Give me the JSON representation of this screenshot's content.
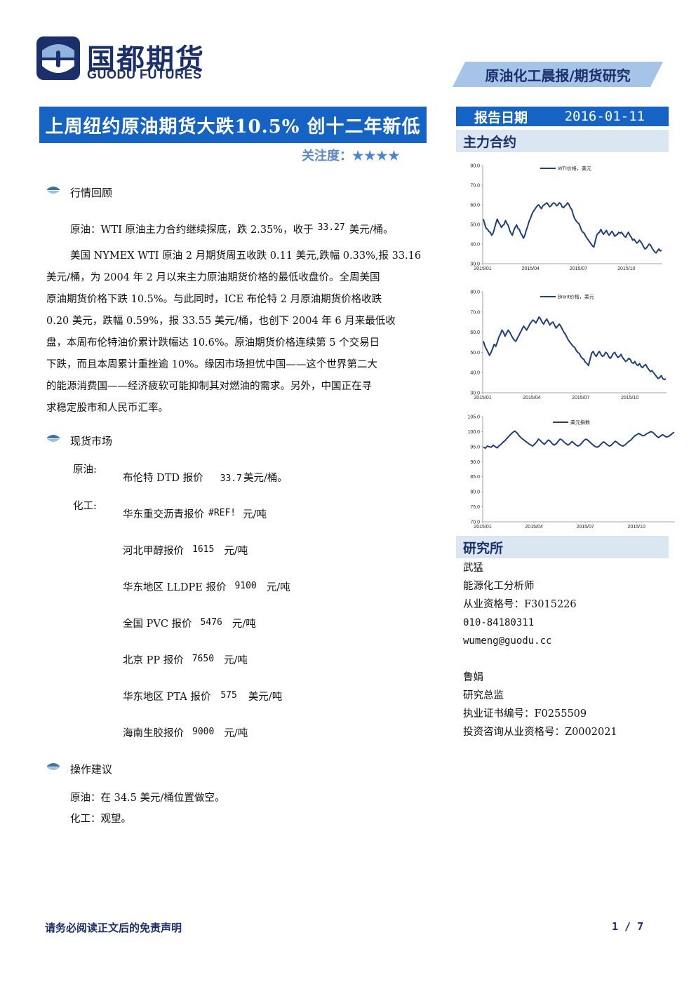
{
  "header": {
    "logo_cn": "国都期货",
    "logo_en": "GUODU FUTURES",
    "report_type": "原油化工晨报/期货研究",
    "title": "上周纽约原油期货大跌10.5% 创十二年新低",
    "attention_label": "关注度：",
    "attention_stars": "★★★★"
  },
  "sidebar": {
    "date_label": "报告日期",
    "date_value": "2016-01-11",
    "main_contract_label": "主力合约",
    "institute_label": "研究所"
  },
  "sections": {
    "review": {
      "title": "行情回顾",
      "lead_prefix": "原油：WTI 原油主力合约继续探底，跌 2.35%，收于",
      "lead_value": "33.27",
      "lead_unit": "美元/桶。",
      "lines": [
        "美国 NYMEX WTI 原油 2 月期货周五收跌 0.11 美元,跌幅 0.33%,报 33.16",
        "美元/桶，为 2004 年 2 月以来主力原油期货价格的最低收盘价。全周美国",
        "原油期货价格下跌 10.5%。与此同时，ICE 布伦特 2 月原油期货价格收跌",
        "0.20 美元，跌幅 0.59%，报 33.55 美元/桶，也创下 2004 年 6 月来最低收",
        "盘，本周布伦特油价累计跌幅达 10.6%。原油期货价格连续第 5 个交易日",
        "下跌，而且本周累计重挫逾 10%。缘因市场担忧中国——这个世界第二大",
        "的能源消费国——经济疲软可能抑制其对燃油的需求。另外，中国正在寻",
        "求稳定股市和人民币汇率。"
      ]
    },
    "spot": {
      "title": "现货市场",
      "crude_label": "原油:",
      "chem_label": "化工:",
      "items": [
        {
          "name": "布伦特 DTD 报价",
          "value": "33.7",
          "unit": "美元/桶。"
        },
        {
          "name": "华东重交沥青报价",
          "value": "#REF!",
          "unit": "元/吨"
        },
        {
          "name": "河北甲醇报价",
          "value": "1615",
          "unit": "元/吨"
        },
        {
          "name": "华东地区 LLDPE 报价",
          "value": "9100",
          "unit": "元/吨"
        },
        {
          "name": "全国 PVC 报价",
          "value": "5476",
          "unit": "元/吨"
        },
        {
          "name": "北京 PP 报价",
          "value": "7650",
          "unit": "元/吨"
        },
        {
          "name": "华东地区 PTA 报价",
          "value": "575",
          "unit": "美元/吨"
        },
        {
          "name": "海南生胶报价",
          "value": "9000",
          "unit": "元/吨"
        }
      ]
    },
    "advice": {
      "title": "操作建议",
      "crude": "原油：在 34.5 美元/桶位置做空。",
      "chem": "化工：观望。"
    }
  },
  "researchers": [
    {
      "name": "武猛",
      "title": "能源化工分析师",
      "cert": "从业资格号：F3015226",
      "phone": "010-84180311",
      "email": "wumeng@guodu.cc"
    },
    {
      "name": "鲁娟",
      "title": "研究总监",
      "cert": "执业证书编号：F0255509",
      "cert2": "投资咨询从业资格号：Z0002021"
    }
  ],
  "footer": {
    "disclaimer": "请务必阅读正文后的免责声明",
    "page": "1 / 7"
  },
  "colors": {
    "brand": "#1563c4",
    "navy": "#1b2f6b",
    "line": "#1f3f7a"
  },
  "chart_data": [
    {
      "type": "line",
      "series": [
        {
          "name": "WTI价格，美元"
        }
      ],
      "x_ticks": [
        "2015/01",
        "2015/04",
        "2015/07",
        "2015/10"
      ],
      "y_ticks": [
        "30.0",
        "40.0",
        "50.0",
        "60.0",
        "70.0",
        "80.0"
      ],
      "ylim": [
        30,
        80
      ],
      "values": [
        52.7,
        50.0,
        48.0,
        47.5,
        46.4,
        46.0,
        44.5,
        45.5,
        48.0,
        50.5,
        52.7,
        51.0,
        50.0,
        48.5,
        49.5,
        50.0,
        52.0,
        50.5,
        49.5,
        47.0,
        45.5,
        44.5,
        47.0,
        48.5,
        49.8,
        48.0,
        47.5,
        45.5,
        44.5,
        43.0,
        44.5,
        47.0,
        49.0,
        51.5,
        53.0,
        55.0,
        56.5,
        57.5,
        58.5,
        59.5,
        60.0,
        59.0,
        58.0,
        59.5,
        60.0,
        60.5,
        61.0,
        60.0,
        59.0,
        59.5,
        60.5,
        61.0,
        60.5,
        59.5,
        60.0,
        61.0,
        60.5,
        59.0,
        58.5,
        59.5,
        60.0,
        61.0,
        60.0,
        58.5,
        57.5,
        55.0,
        53.0,
        52.0,
        51.0,
        50.5,
        49.0,
        47.0,
        46.0,
        45.5,
        44.0,
        43.0,
        42.0,
        41.0,
        40.0,
        39.0,
        38.5,
        41.5,
        44.5,
        45.5,
        46.0,
        47.5,
        46.0,
        45.0,
        46.0,
        47.0,
        45.5,
        44.5,
        45.5,
        46.5,
        45.5,
        44.0,
        44.5,
        45.0,
        46.0,
        45.5,
        46.0,
        45.0,
        44.0,
        43.5,
        45.0,
        46.0,
        44.5,
        43.5,
        42.0,
        42.5,
        41.5,
        40.5,
        41.0,
        42.0,
        41.0,
        40.0,
        38.5,
        37.5,
        38.0,
        39.0,
        40.0,
        39.5,
        38.0,
        37.0,
        36.0,
        35.5,
        36.5,
        37.5,
        36.5,
        37.0
      ]
    },
    {
      "type": "line",
      "series": [
        {
          "name": "Brent价格，美元"
        }
      ],
      "x_ticks": [
        "2015/01",
        "2015/04",
        "2015/07",
        "2015/10"
      ],
      "y_ticks": [
        "30.0",
        "40.0",
        "50.0",
        "60.0",
        "70.0",
        "80.0"
      ],
      "ylim": [
        30,
        80
      ],
      "values": [
        55.5,
        53.0,
        51.5,
        50.0,
        48.5,
        50.0,
        52.0,
        54.0,
        53.0,
        55.0,
        57.5,
        59.0,
        61.0,
        60.0,
        58.0,
        59.5,
        61.0,
        60.0,
        58.5,
        57.0,
        56.0,
        55.5,
        57.0,
        58.5,
        60.0,
        61.5,
        63.0,
        62.0,
        61.0,
        62.5,
        64.0,
        65.0,
        66.0,
        65.5,
        64.5,
        66.0,
        67.5,
        66.5,
        65.0,
        64.0,
        65.5,
        66.5,
        65.0,
        63.5,
        64.5,
        65.0,
        63.5,
        62.0,
        63.0,
        64.0,
        63.0,
        61.5,
        60.0,
        59.0,
        57.5,
        56.0,
        55.0,
        54.0,
        53.0,
        52.5,
        51.0,
        50.0,
        49.5,
        48.0,
        47.0,
        46.5,
        45.0,
        44.5,
        43.5,
        46.5,
        49.5,
        50.5,
        49.0,
        48.0,
        49.5,
        50.5,
        49.0,
        48.0,
        48.5,
        50.0,
        49.5,
        48.0,
        47.0,
        48.0,
        49.5,
        50.0,
        48.5,
        47.5,
        48.0,
        49.0,
        47.5,
        46.5,
        45.5,
        46.0,
        47.0,
        46.5,
        45.0,
        44.5,
        45.5,
        44.0,
        43.5,
        44.5,
        43.0,
        42.5,
        43.5,
        44.0,
        42.5,
        41.5,
        40.5,
        41.0,
        40.0,
        39.0,
        38.0,
        37.0,
        37.5,
        38.5,
        37.0,
        36.5,
        37.0
      ]
    },
    {
      "type": "line",
      "series": [
        {
          "name": "美元指数"
        }
      ],
      "x_ticks": [
        "2015/01",
        "2015/04",
        "2015/07",
        "2015/10"
      ],
      "y_ticks": [
        "70.0",
        "75.0",
        "80.0",
        "85.0",
        "90.0",
        "95.0",
        "100.0",
        "105.0"
      ],
      "ylim": [
        70,
        105
      ],
      "values": [
        94.8,
        94.5,
        95.2,
        95.0,
        94.8,
        95.5,
        95.0,
        94.6,
        95.3,
        95.8,
        96.5,
        97.0,
        97.8,
        98.5,
        99.2,
        99.8,
        100.2,
        99.6,
        98.8,
        98.0,
        97.5,
        97.0,
        96.5,
        96.0,
        95.6,
        95.2,
        95.8,
        96.5,
        97.5,
        97.0,
        96.3,
        95.8,
        96.5,
        97.2,
        96.8,
        96.0,
        95.5,
        96.0,
        96.8,
        97.5,
        97.2,
        96.5,
        96.0,
        95.5,
        96.0,
        96.7,
        96.2,
        95.6,
        95.2,
        95.5,
        96.2,
        97.0,
        97.5,
        97.2,
        96.6,
        96.0,
        95.4,
        95.0,
        94.8,
        95.3,
        96.0,
        96.6,
        96.2,
        95.6,
        95.2,
        95.5,
        96.2,
        96.8,
        96.4,
        95.8,
        95.4,
        95.2,
        95.6,
        96.2,
        96.8,
        97.2,
        98.0,
        98.6,
        99.0,
        99.4,
        99.0,
        98.6,
        98.8,
        99.3,
        99.6,
        100.0,
        99.8,
        99.2,
        98.5,
        98.0,
        98.5,
        99.0,
        98.6,
        98.2,
        98.4,
        98.8,
        99.4,
        99.8
      ]
    }
  ]
}
